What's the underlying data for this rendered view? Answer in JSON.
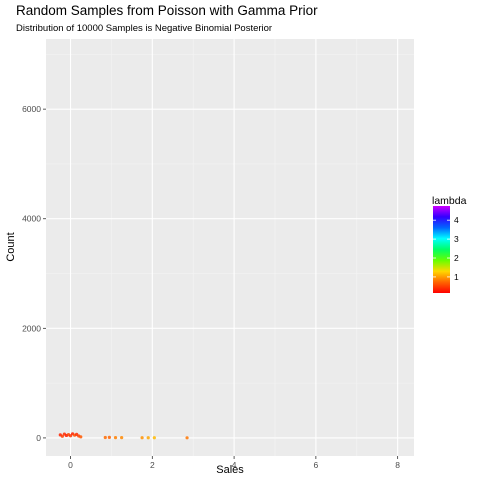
{
  "chart_data": {
    "type": "scatter",
    "title": "Random Samples from Poisson with Gamma Prior",
    "subtitle": "Distribution of 10000 Samples is Negative Binomial Posterior",
    "xlabel": "Sales",
    "ylabel": "Count",
    "xlim": [
      -0.6,
      8.4
    ],
    "ylim": [
      -330,
      7280
    ],
    "x_ticks": [
      0,
      2,
      4,
      6,
      8
    ],
    "y_ticks": [
      0,
      2000,
      4000,
      6000
    ],
    "x_tick_labels": [
      "0",
      "2",
      "4",
      "6",
      "8"
    ],
    "y_tick_labels": [
      "0",
      "2000",
      "4000",
      "6000"
    ],
    "grid": true,
    "legend": {
      "title": "lambda",
      "placement": "right",
      "range": [
        0.15,
        4.75
      ],
      "ticks": [
        1,
        2,
        3,
        4
      ],
      "tick_labels": [
        "1",
        "2",
        "3",
        "4"
      ],
      "colors": [
        "#ff0000",
        "#ff6600",
        "#ffd700",
        "#66ff00",
        "#00ff66",
        "#00ffff",
        "#0066ff",
        "#3300ff",
        "#cc00ff"
      ]
    },
    "points": [
      {
        "x": -0.25,
        "y": 55,
        "lambda": 0.35
      },
      {
        "x": -0.2,
        "y": 30,
        "lambda": 0.5
      },
      {
        "x": -0.15,
        "y": 70,
        "lambda": 0.4
      },
      {
        "x": -0.1,
        "y": 45,
        "lambda": 0.3
      },
      {
        "x": -0.05,
        "y": 60,
        "lambda": 0.55
      },
      {
        "x": 0.0,
        "y": 40,
        "lambda": 0.45
      },
      {
        "x": 0.05,
        "y": 75,
        "lambda": 0.35
      },
      {
        "x": 0.1,
        "y": 50,
        "lambda": 0.6
      },
      {
        "x": 0.15,
        "y": 65,
        "lambda": 0.4
      },
      {
        "x": 0.2,
        "y": 35,
        "lambda": 0.5
      },
      {
        "x": 0.25,
        "y": 20,
        "lambda": 0.65
      },
      {
        "x": 0.85,
        "y": 8,
        "lambda": 0.75
      },
      {
        "x": 0.95,
        "y": 10,
        "lambda": 0.7
      },
      {
        "x": 1.1,
        "y": 6,
        "lambda": 0.85
      },
      {
        "x": 1.25,
        "y": 5,
        "lambda": 0.9
      },
      {
        "x": 1.75,
        "y": 4,
        "lambda": 0.95
      },
      {
        "x": 1.9,
        "y": 3,
        "lambda": 1.05
      },
      {
        "x": 2.05,
        "y": 3,
        "lambda": 1.15
      },
      {
        "x": 2.85,
        "y": 2,
        "lambda": 0.8
      }
    ]
  }
}
